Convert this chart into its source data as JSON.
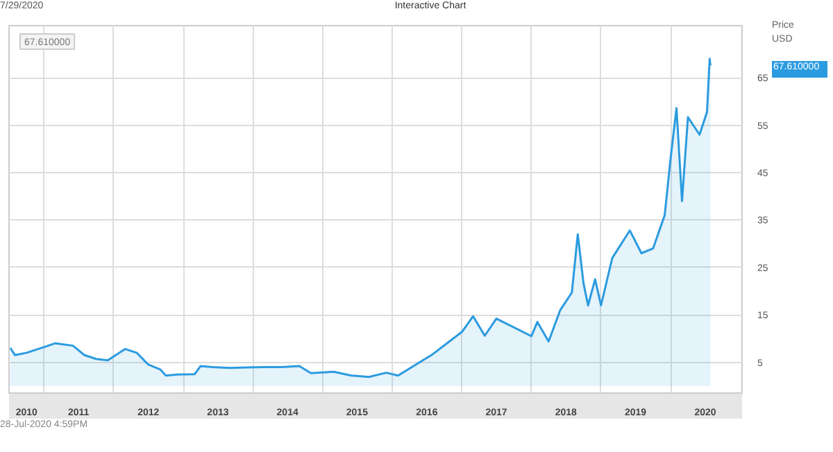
{
  "chart_data": {
    "type": "area",
    "title": "Interactive Chart",
    "ylabel": "Price\nUSD",
    "annotations": [
      "7/29/2020",
      "67.610000",
      "28-Jul-2020 4:59PM",
      "67.610000"
    ],
    "x": [
      "2010-07-08",
      "2010-08",
      "2010-10",
      "2011-01",
      "2011-03",
      "2011-06",
      "2011-08",
      "2011-10",
      "2011-12",
      "2012-03",
      "2012-05",
      "2012-07",
      "2012-09",
      "2012-10",
      "2012-12",
      "2013-03",
      "2013-04",
      "2013-06",
      "2013-09",
      "2013-12",
      "2014-03",
      "2014-06",
      "2014-09",
      "2014-11",
      "2015-03",
      "2015-06",
      "2015-09",
      "2015-12",
      "2016-02",
      "2016-08",
      "2017-01",
      "2017-03",
      "2017-05",
      "2017-07",
      "2018-01",
      "2018-02",
      "2018-04",
      "2018-06",
      "2018-08",
      "2018-09",
      "2018-10",
      "2018-10-25",
      "2018-12",
      "2019-01",
      "2019-03",
      "2019-06",
      "2019-08",
      "2019-10",
      "2019-12",
      "2020-01",
      "2020-02",
      "2020-03",
      "2020-04",
      "2020-06",
      "2020-07-10",
      "2020-07-24",
      "2020-07-28"
    ],
    "series": [
      {
        "color": "#2b9be0",
        "values": [
          8.0,
          6.5,
          7.0,
          8.2,
          9.0,
          8.5,
          6.5,
          5.7,
          5.4,
          7.8,
          7.0,
          4.5,
          3.5,
          2.2,
          2.4,
          2.5,
          4.2,
          4.0,
          3.8,
          3.9,
          4.0,
          4.0,
          4.2,
          2.7,
          3.0,
          2.2,
          1.9,
          2.8,
          2.2,
          6.7,
          11.4,
          14.7,
          10.6,
          14.2,
          10.5,
          13.5,
          9.4,
          16.0,
          19.7,
          32.0,
          21.7,
          17.0,
          22.5,
          17.0,
          27.0,
          32.8,
          28.0,
          29.0,
          36.0,
          48.0,
          58.6,
          39.0,
          56.7,
          53.0,
          57.8,
          69.0,
          67.6
        ]
      }
    ],
    "xlim": [
      "2010-07-01",
      "2021-01-10"
    ],
    "xticks": [
      {
        "value": "2011-01-01",
        "label": null
      },
      {
        "value": "2012-01-01",
        "label": null
      },
      {
        "value": "2013-01-01",
        "label": null
      },
      {
        "value": "2014-01-01",
        "label": null
      },
      {
        "value": "2015-01-01",
        "label": null
      },
      {
        "value": "2016-01-01",
        "label": null
      },
      {
        "value": "2017-01-01",
        "label": null
      },
      {
        "value": "2018-01-01",
        "label": null
      },
      {
        "value": "2019-01-01",
        "label": null
      },
      {
        "value": "2020-01-01",
        "label": null
      },
      {
        "value": "2010-10-01",
        "label": "2010"
      },
      {
        "value": "2011-07-01",
        "label": "2011"
      },
      {
        "value": "2012-07-01",
        "label": "2012"
      },
      {
        "value": "2013-07-01",
        "label": "2013"
      },
      {
        "value": "2014-07-01",
        "label": "2014"
      },
      {
        "value": "2015-07-01",
        "label": "2015"
      },
      {
        "value": "2016-07-01",
        "label": "2016"
      },
      {
        "value": "2017-07-01",
        "label": "2017"
      },
      {
        "value": "2018-07-01",
        "label": "2018"
      },
      {
        "value": "2019-07-01",
        "label": "2019"
      },
      {
        "value": "2020-07-01",
        "label": "2020"
      }
    ],
    "ylim": [
      -1.5,
      76
    ],
    "yticks": [
      5,
      15,
      25,
      35,
      45,
      55,
      65
    ],
    "grid": true
  }
}
